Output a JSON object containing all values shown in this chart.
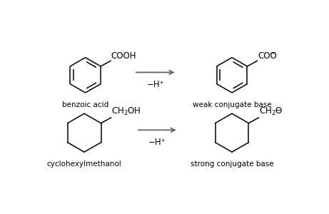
{
  "background_color": "#ffffff",
  "fig_width": 4.61,
  "fig_height": 3.0,
  "dpi": 100,
  "arrow_color": "#666666",
  "text_color": "#000000",
  "line_color": "#000000",
  "labels": {
    "benzoic_acid": "benzoic acid",
    "weak_base": "weak conjugate base",
    "cyclohexylmethanol": "cyclohexylmethanol",
    "strong_base": "strong conjugate base",
    "arrow1_label": "−H⁺",
    "arrow2_label": "−H⁺"
  },
  "label_fontsize": 7.5,
  "formula_fontsize": 8.5,
  "sub_fontsize": 7
}
